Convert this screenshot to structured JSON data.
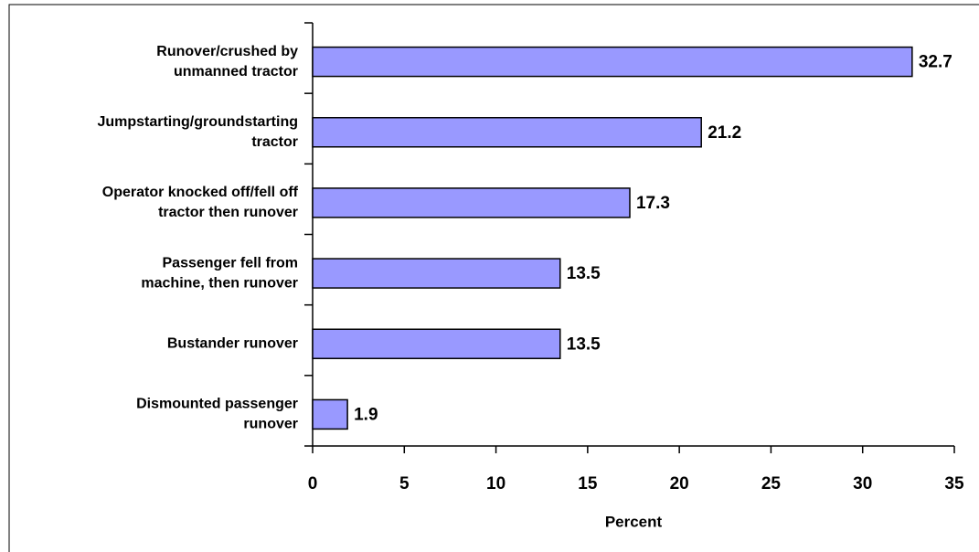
{
  "chart_data": {
    "type": "bar",
    "orientation": "horizontal",
    "categories": [
      [
        "Runover/crushed by",
        "unmanned tractor"
      ],
      [
        "Jumpstarting/groundstarting",
        "tractor"
      ],
      [
        "Operator knocked off/fell off",
        "tractor then runover"
      ],
      [
        "Passenger fell from",
        "machine, then runover"
      ],
      [
        "Bustander runover"
      ],
      [
        "Dismounted passenger",
        "runover"
      ]
    ],
    "values": [
      32.7,
      21.2,
      17.3,
      13.5,
      13.5,
      1.9
    ],
    "color": "#9999ff",
    "x_label": "Percent",
    "xlim": [
      0,
      35
    ],
    "xticks": [
      0,
      5,
      10,
      15,
      20,
      25,
      30,
      35
    ],
    "grid": false
  }
}
